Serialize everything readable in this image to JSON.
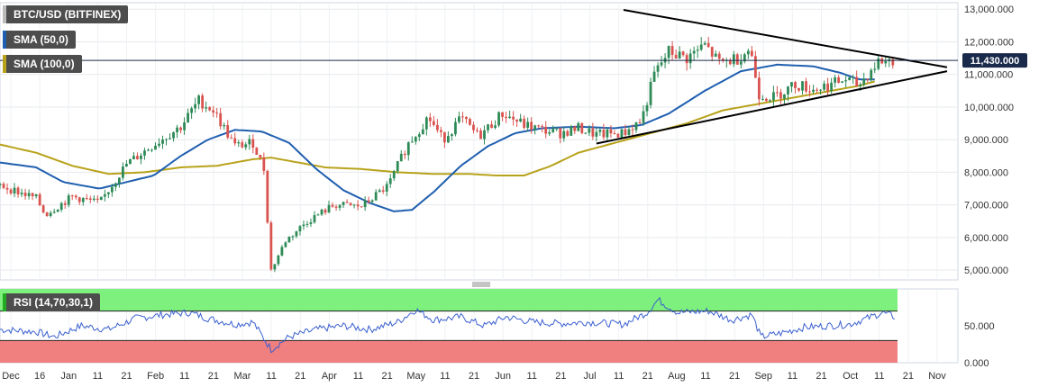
{
  "legend": {
    "main": "BTC/USD (BITFINEX)",
    "sma50": "SMA (50,0)",
    "sma100": "SMA (100,0)",
    "rsi": "RSI (14,70,30,1)"
  },
  "colors": {
    "candle_up": "#2e8b57",
    "candle_down": "#d9534f",
    "sma50": "#1f5fb0",
    "sma100": "#b8a21a",
    "rsi_line": "#3a5fd0",
    "overbought": "#7df07d",
    "oversold": "#f07f7f",
    "price_label_bg": "#1a2a4a"
  },
  "chart_data": {
    "type": "candlestick",
    "title": "BTC/USD (BITFINEX)",
    "last_price_label": "11,430.000",
    "last_price": 11430,
    "price_axis": {
      "ticks": [
        5000,
        6000,
        7000,
        8000,
        9000,
        10000,
        11000,
        12000,
        13000
      ],
      "tick_labels": [
        "5,000.000",
        "6,000.000",
        "7,000.000",
        "8,000.000",
        "9,000.000",
        "10,000.000",
        "11,000.000",
        "12,000.000",
        "13,000.000"
      ],
      "ylim": [
        4700,
        13200
      ]
    },
    "rsi_axis": {
      "ticks": [
        0,
        50
      ],
      "tick_labels": [
        "0.000",
        "50.000"
      ],
      "overbought": 70,
      "oversold": 30,
      "ylim": [
        0,
        100
      ]
    },
    "x_labels": [
      "Dec",
      "16",
      "Jan",
      "11",
      "21",
      "Feb",
      "11",
      "21",
      "Mar",
      "11",
      "21",
      "Apr",
      "11",
      "21",
      "May",
      "11",
      "21",
      "Jun",
      "11",
      "21",
      "Jul",
      "11",
      "21",
      "Aug",
      "11",
      "21",
      "Sep",
      "11",
      "21",
      "Oct",
      "11",
      "21",
      "Nov"
    ],
    "price_keypoints": [
      {
        "day": 0,
        "close": 7600
      },
      {
        "day": 20,
        "close": 7200
      },
      {
        "day": 25,
        "close": 6700
      },
      {
        "day": 40,
        "close": 7250
      },
      {
        "day": 55,
        "close": 7050
      },
      {
        "day": 70,
        "close": 8250
      },
      {
        "day": 85,
        "close": 8850
      },
      {
        "day": 100,
        "close": 9400
      },
      {
        "day": 110,
        "close": 10200
      },
      {
        "day": 118,
        "close": 9900
      },
      {
        "day": 130,
        "close": 8800
      },
      {
        "day": 140,
        "close": 8900
      },
      {
        "day": 146,
        "close": 8100
      },
      {
        "day": 150,
        "close": 5000
      },
      {
        "day": 158,
        "close": 5900
      },
      {
        "day": 170,
        "close": 6500
      },
      {
        "day": 185,
        "close": 7000
      },
      {
        "day": 200,
        "close": 6950
      },
      {
        "day": 215,
        "close": 7600
      },
      {
        "day": 225,
        "close": 8800
      },
      {
        "day": 237,
        "close": 9700
      },
      {
        "day": 245,
        "close": 9000
      },
      {
        "day": 255,
        "close": 9650
      },
      {
        "day": 265,
        "close": 9100
      },
      {
        "day": 278,
        "close": 9800
      },
      {
        "day": 290,
        "close": 9450
      },
      {
        "day": 300,
        "close": 9300
      },
      {
        "day": 310,
        "close": 9200
      },
      {
        "day": 320,
        "close": 9350
      },
      {
        "day": 330,
        "close": 9150
      },
      {
        "day": 345,
        "close": 9200
      },
      {
        "day": 355,
        "close": 9600
      },
      {
        "day": 362,
        "close": 11000
      },
      {
        "day": 370,
        "close": 11700
      },
      {
        "day": 380,
        "close": 11500
      },
      {
        "day": 390,
        "close": 11900
      },
      {
        "day": 398,
        "close": 11350
      },
      {
        "day": 408,
        "close": 11500
      },
      {
        "day": 415,
        "close": 11800
      },
      {
        "day": 420,
        "close": 10400
      },
      {
        "day": 428,
        "close": 10300
      },
      {
        "day": 440,
        "close": 10700
      },
      {
        "day": 450,
        "close": 10550
      },
      {
        "day": 460,
        "close": 10700
      },
      {
        "day": 468,
        "close": 10850
      },
      {
        "day": 475,
        "close": 10650
      },
      {
        "day": 480,
        "close": 11000
      },
      {
        "day": 486,
        "close": 11400
      },
      {
        "day": 495,
        "close": 11430
      }
    ],
    "sma50_keypoints": [
      {
        "day": 0,
        "value": 8300
      },
      {
        "day": 20,
        "value": 8150
      },
      {
        "day": 35,
        "value": 7700
      },
      {
        "day": 55,
        "value": 7500
      },
      {
        "day": 70,
        "value": 7700
      },
      {
        "day": 85,
        "value": 7900
      },
      {
        "day": 100,
        "value": 8500
      },
      {
        "day": 115,
        "value": 9000
      },
      {
        "day": 130,
        "value": 9300
      },
      {
        "day": 145,
        "value": 9250
      },
      {
        "day": 160,
        "value": 8900
      },
      {
        "day": 175,
        "value": 8100
      },
      {
        "day": 190,
        "value": 7450
      },
      {
        "day": 205,
        "value": 7050
      },
      {
        "day": 218,
        "value": 6800
      },
      {
        "day": 228,
        "value": 6850
      },
      {
        "day": 240,
        "value": 7400
      },
      {
        "day": 255,
        "value": 8200
      },
      {
        "day": 270,
        "value": 8800
      },
      {
        "day": 285,
        "value": 9200
      },
      {
        "day": 300,
        "value": 9350
      },
      {
        "day": 320,
        "value": 9400
      },
      {
        "day": 340,
        "value": 9350
      },
      {
        "day": 355,
        "value": 9450
      },
      {
        "day": 370,
        "value": 9800
      },
      {
        "day": 390,
        "value": 10500
      },
      {
        "day": 410,
        "value": 11100
      },
      {
        "day": 430,
        "value": 11300
      },
      {
        "day": 450,
        "value": 11250
      },
      {
        "day": 465,
        "value": 11050
      },
      {
        "day": 475,
        "value": 10850
      },
      {
        "day": 485,
        "value": 10850
      }
    ],
    "sma100_keypoints": [
      {
        "day": 0,
        "value": 8850
      },
      {
        "day": 20,
        "value": 8600
      },
      {
        "day": 40,
        "value": 8200
      },
      {
        "day": 60,
        "value": 7950
      },
      {
        "day": 80,
        "value": 8000
      },
      {
        "day": 100,
        "value": 8150
      },
      {
        "day": 120,
        "value": 8200
      },
      {
        "day": 140,
        "value": 8400
      },
      {
        "day": 150,
        "value": 8450
      },
      {
        "day": 165,
        "value": 8300
      },
      {
        "day": 180,
        "value": 8150
      },
      {
        "day": 200,
        "value": 8100
      },
      {
        "day": 220,
        "value": 8000
      },
      {
        "day": 240,
        "value": 7950
      },
      {
        "day": 260,
        "value": 7950
      },
      {
        "day": 275,
        "value": 7900
      },
      {
        "day": 290,
        "value": 7900
      },
      {
        "day": 305,
        "value": 8200
      },
      {
        "day": 320,
        "value": 8600
      },
      {
        "day": 340,
        "value": 8900
      },
      {
        "day": 360,
        "value": 9200
      },
      {
        "day": 380,
        "value": 9500
      },
      {
        "day": 400,
        "value": 9900
      },
      {
        "day": 420,
        "value": 10100
      },
      {
        "day": 440,
        "value": 10300
      },
      {
        "day": 460,
        "value": 10500
      },
      {
        "day": 475,
        "value": 10650
      },
      {
        "day": 485,
        "value": 10800
      }
    ],
    "rsi_keypoints": [
      {
        "day": 0,
        "value": 45
      },
      {
        "day": 20,
        "value": 42
      },
      {
        "day": 30,
        "value": 35
      },
      {
        "day": 45,
        "value": 50
      },
      {
        "day": 60,
        "value": 45
      },
      {
        "day": 75,
        "value": 60
      },
      {
        "day": 90,
        "value": 65
      },
      {
        "day": 105,
        "value": 68
      },
      {
        "day": 115,
        "value": 60
      },
      {
        "day": 130,
        "value": 52
      },
      {
        "day": 140,
        "value": 55
      },
      {
        "day": 150,
        "value": 18
      },
      {
        "day": 160,
        "value": 35
      },
      {
        "day": 175,
        "value": 45
      },
      {
        "day": 190,
        "value": 50
      },
      {
        "day": 205,
        "value": 45
      },
      {
        "day": 220,
        "value": 55
      },
      {
        "day": 230,
        "value": 72
      },
      {
        "day": 240,
        "value": 58
      },
      {
        "day": 255,
        "value": 62
      },
      {
        "day": 268,
        "value": 50
      },
      {
        "day": 280,
        "value": 62
      },
      {
        "day": 295,
        "value": 55
      },
      {
        "day": 310,
        "value": 53
      },
      {
        "day": 325,
        "value": 55
      },
      {
        "day": 345,
        "value": 52
      },
      {
        "day": 358,
        "value": 68
      },
      {
        "day": 364,
        "value": 85
      },
      {
        "day": 375,
        "value": 68
      },
      {
        "day": 392,
        "value": 70
      },
      {
        "day": 405,
        "value": 58
      },
      {
        "day": 416,
        "value": 65
      },
      {
        "day": 421,
        "value": 35
      },
      {
        "day": 432,
        "value": 40
      },
      {
        "day": 445,
        "value": 48
      },
      {
        "day": 458,
        "value": 50
      },
      {
        "day": 470,
        "value": 52
      },
      {
        "day": 482,
        "value": 62
      },
      {
        "day": 488,
        "value": 68
      },
      {
        "day": 495,
        "value": 62
      }
    ],
    "trendlines": [
      {
        "name": "upper",
        "from": {
          "day": 345,
          "value": 12980
        },
        "to": {
          "day": 524,
          "value": 11220
        }
      },
      {
        "name": "lower",
        "from": {
          "day": 330,
          "value": 8880
        },
        "to": {
          "day": 524,
          "value": 11100
        }
      }
    ],
    "grid": true,
    "day_span": 530
  }
}
